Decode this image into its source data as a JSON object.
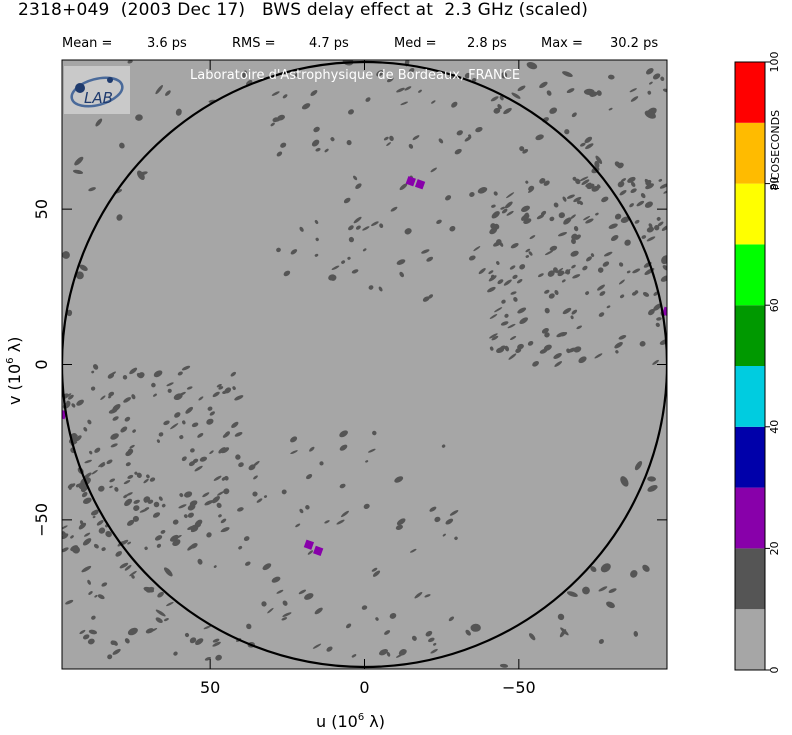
{
  "header": {
    "title": "2318+049  (2003 Dec 17)   BWS delay effect at  2.3 GHz (scaled)",
    "stats": [
      {
        "label": "Mean =",
        "value": "3.6 ps"
      },
      {
        "label": "RMS =",
        "value": "4.7 ps"
      },
      {
        "label": "Med =",
        "value": "2.8 ps"
      },
      {
        "label": "Max =",
        "value": "30.2 ps"
      }
    ]
  },
  "watermark": "Laboratoire d'Astrophysique de Bordeaux, FRANCE",
  "logo_text": "LAB",
  "chart_data": {
    "type": "heatmap",
    "xlabel": "u  (10",
    "xlabel_exp": "6",
    "xlabel_unit": " λ)",
    "ylabel": "v  (10",
    "ylabel_exp": "6",
    "ylabel_unit": " λ)",
    "xlim": [
      98,
      -98
    ],
    "ylim": [
      -98,
      98
    ],
    "x_ticks": [
      {
        "value": 50,
        "label": "50"
      },
      {
        "value": 0,
        "label": "0"
      },
      {
        "value": -50,
        "label": "−50"
      }
    ],
    "y_ticks": [
      {
        "value": 50,
        "label": "50"
      },
      {
        "value": 0,
        "label": "0"
      },
      {
        "value": -50,
        "label": "−50"
      }
    ],
    "circle_radius": 98,
    "background_color": "#a6a6a6",
    "colorbar": {
      "label": "PICOSECONDS",
      "range": [
        0,
        100
      ],
      "ticks": [
        {
          "value": 0,
          "label": "0"
        },
        {
          "value": 20,
          "label": "20"
        },
        {
          "value": 40,
          "label": "40"
        },
        {
          "value": 60,
          "label": "60"
        },
        {
          "value": 80,
          "label": "80"
        },
        {
          "value": 100,
          "label": "100"
        }
      ],
      "bins": [
        {
          "from": 0,
          "to": 10,
          "color": "#a6a6a6"
        },
        {
          "from": 10,
          "to": 20,
          "color": "#555555"
        },
        {
          "from": 20,
          "to": 30,
          "color": "#8800aa"
        },
        {
          "from": 30,
          "to": 40,
          "color": "#0000aa"
        },
        {
          "from": 40,
          "to": 50,
          "color": "#00cce0"
        },
        {
          "from": 50,
          "to": 60,
          "color": "#009900"
        },
        {
          "from": 60,
          "to": 70,
          "color": "#00ff00"
        },
        {
          "from": 70,
          "to": 80,
          "color": "#ffff00"
        },
        {
          "from": 80,
          "to": 90,
          "color": "#ffbb00"
        },
        {
          "from": 90,
          "to": 100,
          "color": "#ff0000"
        }
      ]
    },
    "regions": [
      {
        "name": "upper-right-arc",
        "u_range": [
          -98,
          30
        ],
        "v_range": [
          20,
          95
        ],
        "level": "10-20 ps",
        "density": 0.55
      },
      {
        "name": "lower-left-arc",
        "u_range": [
          -30,
          98
        ],
        "v_range": [
          -95,
          -20
        ],
        "level": "10-20 ps",
        "density": 0.55
      },
      {
        "name": "left-band",
        "u_range": [
          40,
          98
        ],
        "v_range": [
          -60,
          0
        ],
        "level": "10-20 ps",
        "density": 0.6
      },
      {
        "name": "right-band",
        "u_range": [
          -98,
          -40
        ],
        "v_range": [
          0,
          60
        ],
        "level": "10-20 ps",
        "density": 0.6
      }
    ],
    "peaks": [
      {
        "u": -15,
        "v": 59,
        "level": "20-30 ps"
      },
      {
        "u": -18,
        "v": 58,
        "level": "20-30 ps"
      },
      {
        "u": 18,
        "v": -58,
        "level": "20-30 ps"
      },
      {
        "u": 15,
        "v": -60,
        "level": "20-30 ps"
      },
      {
        "u": -98,
        "v": 17,
        "level": "20-30 ps"
      },
      {
        "u": 98,
        "v": -16,
        "level": "20-30 ps"
      }
    ]
  }
}
